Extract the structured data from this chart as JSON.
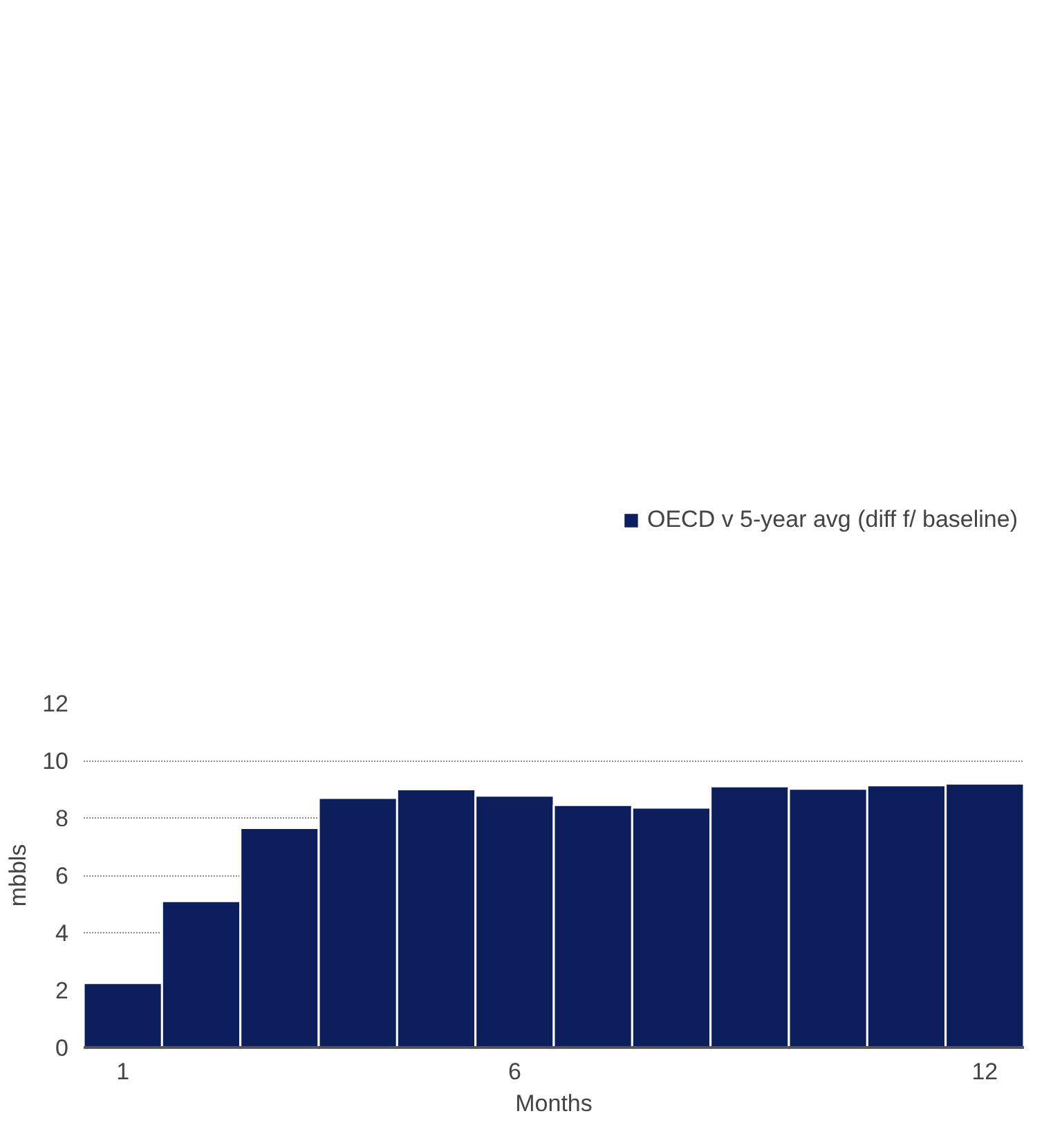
{
  "chart_data": {
    "type": "bar",
    "xlabel": "Months",
    "ylabel": "mbbls",
    "categories": [
      "1",
      null,
      null,
      null,
      null,
      "6",
      null,
      null,
      null,
      null,
      null,
      "12"
    ],
    "series": [
      {
        "name": "OECD v 5-year avg (diff f/ baseline)",
        "color": "#0c1f5c",
        "values": [
          2.25,
          5.1,
          7.65,
          8.7,
          9.0,
          8.78,
          8.45,
          8.36,
          9.1,
          9.02,
          9.14,
          9.2
        ]
      }
    ],
    "ylim": [
      0,
      12
    ],
    "yticks": [
      0,
      2,
      4,
      6,
      8,
      10,
      12
    ],
    "grid": "y",
    "legend": "top right"
  }
}
